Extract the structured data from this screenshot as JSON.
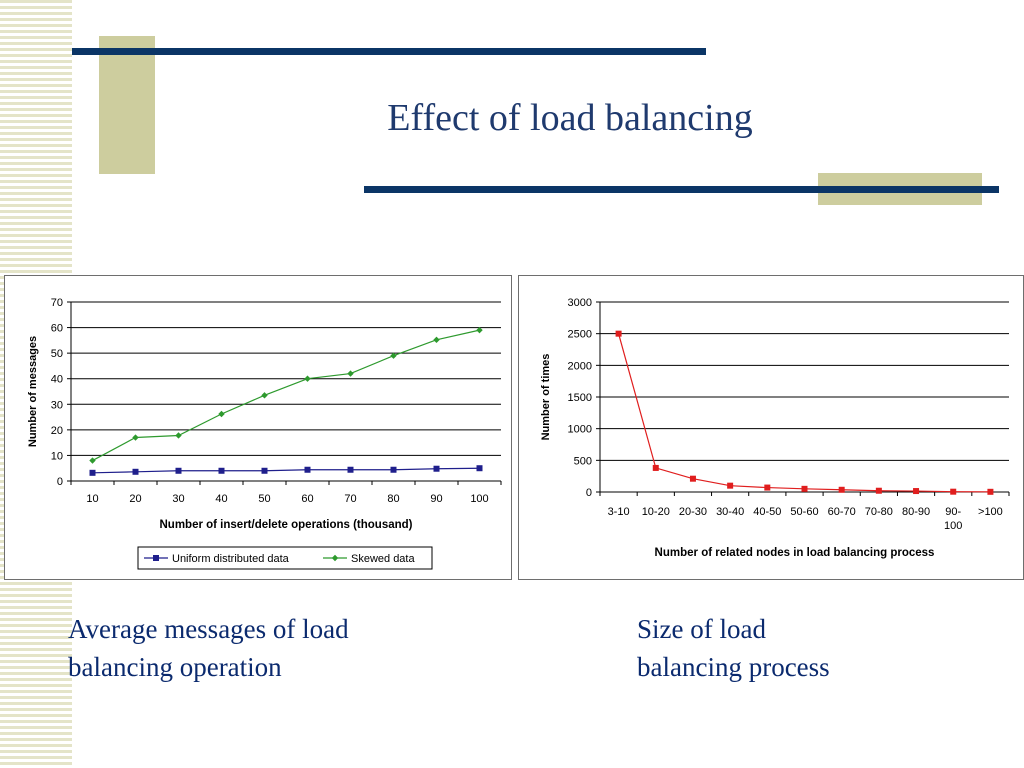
{
  "slide": {
    "title": "Effect of load balancing",
    "colors": {
      "navy": "#0b3566",
      "khaki": "#cdcd9e",
      "title": "#1f3a6e"
    }
  },
  "captions": {
    "left": [
      "Average messages of load",
      "balancing operation"
    ],
    "right": [
      "Size of load",
      "balancing process"
    ]
  },
  "chart_data": [
    {
      "type": "line",
      "title": "",
      "xlabel": "Number of insert/delete operations (thousand)",
      "ylabel": "Number of messages",
      "x": [
        10,
        20,
        30,
        40,
        50,
        60,
        70,
        80,
        90,
        100
      ],
      "ylim": [
        0,
        70
      ],
      "yticks": [
        0,
        10,
        20,
        30,
        40,
        50,
        60,
        70
      ],
      "grid": true,
      "legend": "bottom",
      "series": [
        {
          "name": "Uniform distributed data",
          "color": "#1f1f8c",
          "marker": "square",
          "values": [
            3.2,
            3.6,
            4.0,
            4.0,
            4.0,
            4.4,
            4.4,
            4.4,
            4.8,
            5.0
          ]
        },
        {
          "name": "Skewed data",
          "color": "#2e9a2e",
          "marker": "diamond",
          "values": [
            8.0,
            17.0,
            17.8,
            26.2,
            33.5,
            40.0,
            42.0,
            49.0,
            55.2,
            59.0
          ]
        }
      ]
    },
    {
      "type": "line",
      "title": "",
      "xlabel": "Number of related nodes in load balancing process",
      "ylabel": "Number of times",
      "categories": [
        "3-10",
        "10-20",
        "20-30",
        "30-40",
        "40-50",
        "50-60",
        "60-70",
        "70-80",
        "80-90",
        "90-\n100",
        ">100"
      ],
      "ylim": [
        0,
        3000
      ],
      "yticks": [
        0,
        500,
        1000,
        1500,
        2000,
        2500,
        3000
      ],
      "grid": true,
      "legend": "none",
      "series": [
        {
          "color": "#e01e1e",
          "marker": "square",
          "values": [
            2500,
            380,
            210,
            100,
            70,
            50,
            35,
            20,
            15,
            5,
            3
          ]
        }
      ]
    }
  ]
}
